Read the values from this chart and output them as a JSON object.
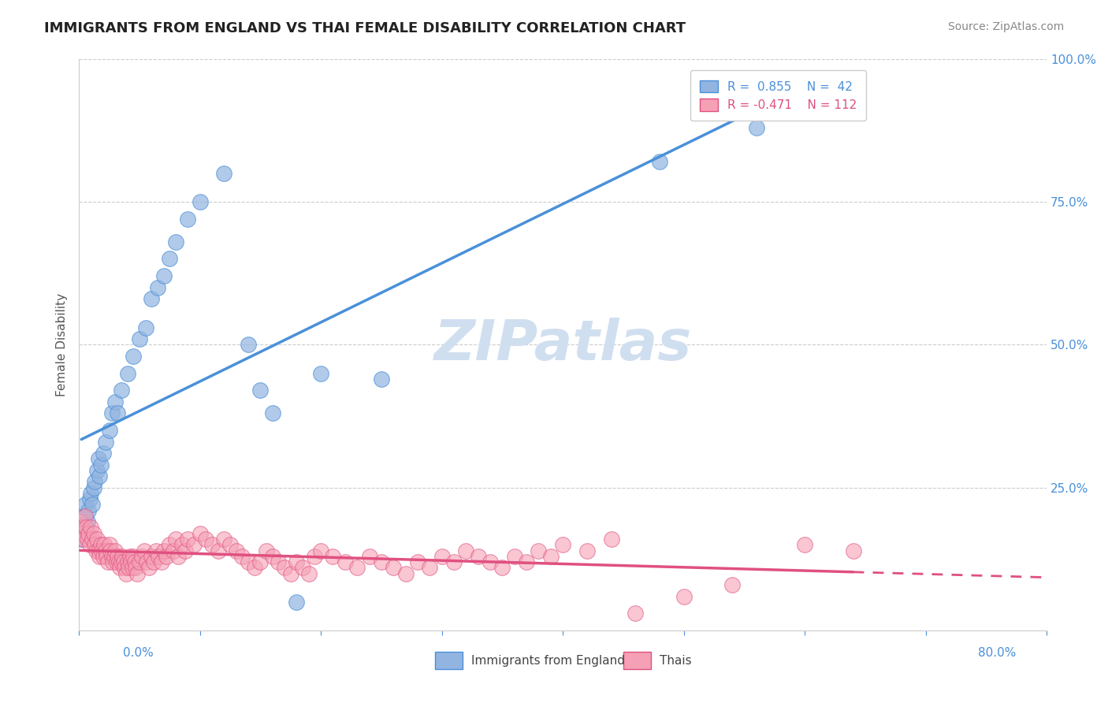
{
  "title": "IMMIGRANTS FROM ENGLAND VS THAI FEMALE DISABILITY CORRELATION CHART",
  "source": "Source: ZipAtlas.com",
  "ylabel": "Female Disability",
  "xlim": [
    0.0,
    0.8
  ],
  "ylim": [
    0.0,
    1.0
  ],
  "yticks": [
    0.0,
    0.25,
    0.5,
    0.75,
    1.0
  ],
  "ytick_labels": [
    "",
    "25.0%",
    "50.0%",
    "75.0%",
    "100.0%"
  ],
  "color_england": "#92b4e0",
  "color_thai": "#f5a0b5",
  "line_color_england": "#4a90d9",
  "line_color_thai": "#e05080",
  "watermark": "ZIPatlas",
  "watermark_color": "#d0dff0",
  "england_points": [
    [
      0.002,
      0.16
    ],
    [
      0.004,
      0.2
    ],
    [
      0.005,
      0.22
    ],
    [
      0.006,
      0.18
    ],
    [
      0.007,
      0.19
    ],
    [
      0.008,
      0.21
    ],
    [
      0.009,
      0.23
    ],
    [
      0.01,
      0.24
    ],
    [
      0.011,
      0.22
    ],
    [
      0.012,
      0.25
    ],
    [
      0.013,
      0.26
    ],
    [
      0.015,
      0.28
    ],
    [
      0.016,
      0.3
    ],
    [
      0.017,
      0.27
    ],
    [
      0.018,
      0.29
    ],
    [
      0.02,
      0.31
    ],
    [
      0.022,
      0.33
    ],
    [
      0.025,
      0.35
    ],
    [
      0.027,
      0.38
    ],
    [
      0.03,
      0.4
    ],
    [
      0.032,
      0.38
    ],
    [
      0.035,
      0.42
    ],
    [
      0.04,
      0.45
    ],
    [
      0.045,
      0.48
    ],
    [
      0.05,
      0.51
    ],
    [
      0.055,
      0.53
    ],
    [
      0.06,
      0.58
    ],
    [
      0.065,
      0.6
    ],
    [
      0.07,
      0.62
    ],
    [
      0.075,
      0.65
    ],
    [
      0.08,
      0.68
    ],
    [
      0.09,
      0.72
    ],
    [
      0.1,
      0.75
    ],
    [
      0.12,
      0.8
    ],
    [
      0.14,
      0.5
    ],
    [
      0.15,
      0.42
    ],
    [
      0.16,
      0.38
    ],
    [
      0.18,
      0.05
    ],
    [
      0.2,
      0.45
    ],
    [
      0.25,
      0.44
    ],
    [
      0.48,
      0.82
    ],
    [
      0.56,
      0.88
    ]
  ],
  "thai_points": [
    [
      0.001,
      0.19
    ],
    [
      0.002,
      0.18
    ],
    [
      0.003,
      0.17
    ],
    [
      0.004,
      0.16
    ],
    [
      0.005,
      0.2
    ],
    [
      0.006,
      0.18
    ],
    [
      0.007,
      0.16
    ],
    [
      0.008,
      0.17
    ],
    [
      0.009,
      0.15
    ],
    [
      0.01,
      0.18
    ],
    [
      0.011,
      0.16
    ],
    [
      0.012,
      0.17
    ],
    [
      0.013,
      0.15
    ],
    [
      0.014,
      0.14
    ],
    [
      0.015,
      0.16
    ],
    [
      0.016,
      0.14
    ],
    [
      0.017,
      0.13
    ],
    [
      0.018,
      0.15
    ],
    [
      0.019,
      0.14
    ],
    [
      0.02,
      0.13
    ],
    [
      0.021,
      0.15
    ],
    [
      0.022,
      0.14
    ],
    [
      0.023,
      0.13
    ],
    [
      0.024,
      0.12
    ],
    [
      0.025,
      0.15
    ],
    [
      0.026,
      0.14
    ],
    [
      0.027,
      0.13
    ],
    [
      0.028,
      0.12
    ],
    [
      0.029,
      0.13
    ],
    [
      0.03,
      0.14
    ],
    [
      0.031,
      0.12
    ],
    [
      0.032,
      0.13
    ],
    [
      0.033,
      0.12
    ],
    [
      0.034,
      0.11
    ],
    [
      0.035,
      0.12
    ],
    [
      0.036,
      0.13
    ],
    [
      0.037,
      0.12
    ],
    [
      0.038,
      0.11
    ],
    [
      0.039,
      0.1
    ],
    [
      0.04,
      0.12
    ],
    [
      0.041,
      0.11
    ],
    [
      0.042,
      0.13
    ],
    [
      0.043,
      0.12
    ],
    [
      0.044,
      0.11
    ],
    [
      0.045,
      0.13
    ],
    [
      0.046,
      0.12
    ],
    [
      0.047,
      0.11
    ],
    [
      0.048,
      0.1
    ],
    [
      0.05,
      0.12
    ],
    [
      0.052,
      0.13
    ],
    [
      0.054,
      0.14
    ],
    [
      0.056,
      0.12
    ],
    [
      0.058,
      0.11
    ],
    [
      0.06,
      0.13
    ],
    [
      0.062,
      0.12
    ],
    [
      0.064,
      0.14
    ],
    [
      0.066,
      0.13
    ],
    [
      0.068,
      0.12
    ],
    [
      0.07,
      0.14
    ],
    [
      0.072,
      0.13
    ],
    [
      0.075,
      0.15
    ],
    [
      0.078,
      0.14
    ],
    [
      0.08,
      0.16
    ],
    [
      0.082,
      0.13
    ],
    [
      0.085,
      0.15
    ],
    [
      0.088,
      0.14
    ],
    [
      0.09,
      0.16
    ],
    [
      0.095,
      0.15
    ],
    [
      0.1,
      0.17
    ],
    [
      0.105,
      0.16
    ],
    [
      0.11,
      0.15
    ],
    [
      0.115,
      0.14
    ],
    [
      0.12,
      0.16
    ],
    [
      0.125,
      0.15
    ],
    [
      0.13,
      0.14
    ],
    [
      0.135,
      0.13
    ],
    [
      0.14,
      0.12
    ],
    [
      0.145,
      0.11
    ],
    [
      0.15,
      0.12
    ],
    [
      0.155,
      0.14
    ],
    [
      0.16,
      0.13
    ],
    [
      0.165,
      0.12
    ],
    [
      0.17,
      0.11
    ],
    [
      0.175,
      0.1
    ],
    [
      0.18,
      0.12
    ],
    [
      0.185,
      0.11
    ],
    [
      0.19,
      0.1
    ],
    [
      0.195,
      0.13
    ],
    [
      0.2,
      0.14
    ],
    [
      0.21,
      0.13
    ],
    [
      0.22,
      0.12
    ],
    [
      0.23,
      0.11
    ],
    [
      0.24,
      0.13
    ],
    [
      0.25,
      0.12
    ],
    [
      0.26,
      0.11
    ],
    [
      0.27,
      0.1
    ],
    [
      0.28,
      0.12
    ],
    [
      0.29,
      0.11
    ],
    [
      0.3,
      0.13
    ],
    [
      0.31,
      0.12
    ],
    [
      0.32,
      0.14
    ],
    [
      0.33,
      0.13
    ],
    [
      0.34,
      0.12
    ],
    [
      0.35,
      0.11
    ],
    [
      0.36,
      0.13
    ],
    [
      0.37,
      0.12
    ],
    [
      0.38,
      0.14
    ],
    [
      0.39,
      0.13
    ],
    [
      0.4,
      0.15
    ],
    [
      0.42,
      0.14
    ],
    [
      0.44,
      0.16
    ],
    [
      0.46,
      0.03
    ],
    [
      0.5,
      0.06
    ],
    [
      0.54,
      0.08
    ],
    [
      0.6,
      0.15
    ],
    [
      0.64,
      0.14
    ]
  ]
}
